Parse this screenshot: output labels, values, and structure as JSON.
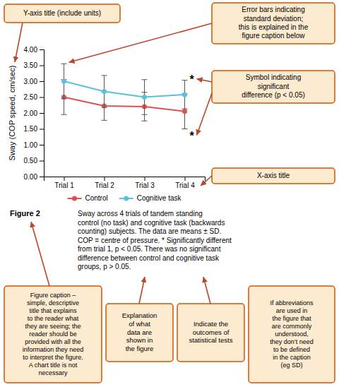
{
  "chart_data": {
    "type": "line",
    "categories": [
      "Trial 1",
      "Trial 2",
      "Trial 3",
      "Trial 4"
    ],
    "series": [
      {
        "name": "Control",
        "color": "#d9534f",
        "marker": "circle",
        "values": [
          2.5,
          2.22,
          2.2,
          2.05
        ],
        "errors": [
          0.55,
          0.45,
          0.45,
          0.55
        ]
      },
      {
        "name": "Cognitive task",
        "color": "#5bc0de",
        "marker": "circle",
        "values": [
          3.0,
          2.68,
          2.5,
          2.58
        ],
        "errors": [
          0.55,
          0.5,
          0.55,
          0.45
        ]
      }
    ],
    "y_label": "Sway (COP speed, cm/sec)",
    "ylim": [
      0.0,
      4.0
    ],
    "yticks": [
      {
        "value": 0.0,
        "label": "0.00"
      },
      {
        "value": 0.5,
        "label": "0.50"
      },
      {
        "value": 1.0,
        "label": "1.00"
      },
      {
        "value": 1.5,
        "label": "1.50"
      },
      {
        "value": 2.0,
        "label": "2.00"
      },
      {
        "value": 2.5,
        "label": "2.50"
      },
      {
        "value": 3.0,
        "label": "3.00"
      },
      {
        "value": 3.5,
        "label": "3.50"
      },
      {
        "value": 4.0,
        "label": "4.00"
      }
    ],
    "grid": false,
    "legend": "bottom",
    "significance": [
      {
        "text": "*",
        "category": "Trial 4"
      },
      {
        "text": "*",
        "category": "Trial 4"
      }
    ],
    "caption_label": "Figure 2",
    "caption": "Sway across 4 trials of tandem standing\ncontrol (no task) and cognitive task (backwards\ncounting) subjects. The data are means ± SD.\nCOP = centre of pressure. * Significantly different\nfrom trial 1, p < 0.05. There was no significant\ndifference between control and cognitive task\ngroups, p > 0.05.",
    "annotations": [
      "Y-axis title (include units)",
      "Error bars indicating\nstandard deviation;\nthis is explained in the\nfigure caption below",
      "Symbol indicating\nsignificant\ndifference (p < 0.05)",
      "X-axis title",
      "Figure caption –\nsimple, descriptive\ntitle that explains\nto the reader what\nthey are seeing; the\nreader should be\nprovided with all the\ninformation they need\nto interpret the figure.\nA chart title is not\nnecessary",
      "Explanation\nof what\ndata are\nshown in\nthe figure",
      "Indicate the\noutcomes of\nstatistical tests",
      "If abbreviations\nare used in\nthe figure that\nare commonly\nunderstood,\nthey don’t need\nto be defined\nin the caption\n(eg SD)"
    ]
  }
}
